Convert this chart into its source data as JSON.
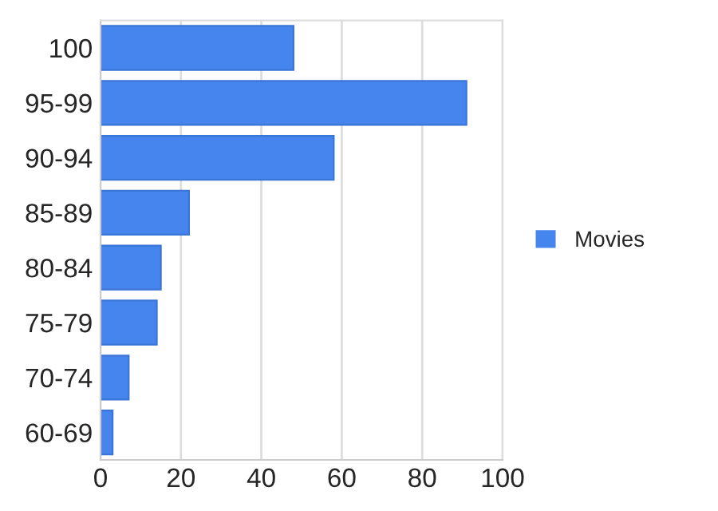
{
  "chart_data": {
    "type": "bar",
    "orientation": "horizontal",
    "categories": [
      "100",
      "95-99",
      "90-94",
      "85-89",
      "80-84",
      "75-79",
      "70-74",
      "60-69"
    ],
    "series": [
      {
        "name": "Movies",
        "color": "#4684ee",
        "values": [
          48,
          91,
          58,
          22,
          15,
          14,
          7,
          3
        ]
      }
    ],
    "xlim": [
      0,
      100
    ],
    "xticks": [
      0,
      20,
      40,
      60,
      80,
      100
    ],
    "grid": "x",
    "legend": "right"
  }
}
